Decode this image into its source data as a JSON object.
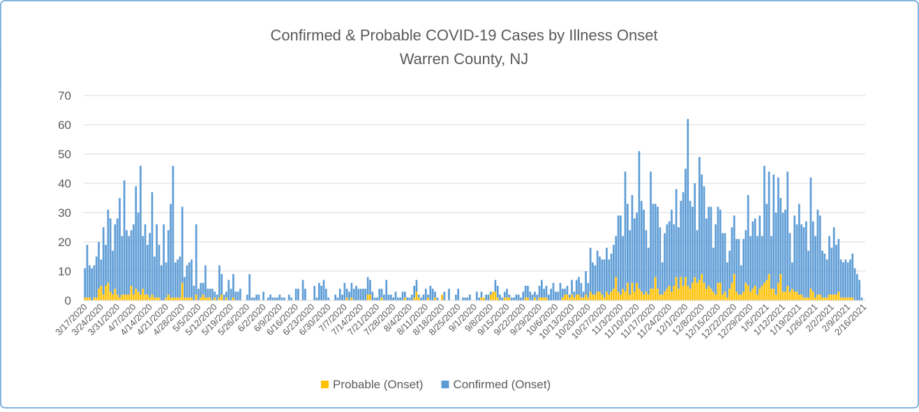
{
  "chart_data": {
    "type": "stacked_bar",
    "title": "Confirmed & Probable COVID-19 Cases by Illness Onset",
    "subtitle": "Warren County, NJ",
    "categories": [
      "3/17/2020",
      null,
      null,
      null,
      null,
      null,
      null,
      "3/24/2020",
      null,
      null,
      null,
      null,
      null,
      null,
      "3/31/2020",
      null,
      null,
      null,
      null,
      null,
      null,
      "4/7/2020",
      null,
      null,
      null,
      null,
      null,
      null,
      "4/14/2020",
      null,
      null,
      null,
      null,
      null,
      null,
      "4/21/2020",
      null,
      null,
      null,
      null,
      null,
      null,
      "4/28/2020",
      null,
      null,
      null,
      null,
      null,
      null,
      "5/5/2020",
      null,
      null,
      null,
      null,
      null,
      null,
      "5/12/2020",
      null,
      null,
      null,
      null,
      null,
      null,
      "5/19/2020",
      null,
      null,
      null,
      null,
      null,
      null,
      "5/26/2020",
      null,
      null,
      null,
      null,
      null,
      null,
      "6/2/2020",
      null,
      null,
      null,
      null,
      null,
      null,
      "6/9/2020",
      null,
      null,
      null,
      null,
      null,
      null,
      "6/16/2020",
      null,
      null,
      null,
      null,
      null,
      null,
      "6/23/2020",
      null,
      null,
      null,
      null,
      null,
      null,
      "6/30/2020",
      null,
      null,
      null,
      null,
      null,
      null,
      "7/7/2020",
      null,
      null,
      null,
      null,
      null,
      null,
      "7/14/2020",
      null,
      null,
      null,
      null,
      null,
      null,
      "7/21/2020",
      null,
      null,
      null,
      null,
      null,
      null,
      "7/28/2020",
      null,
      null,
      null,
      null,
      null,
      null,
      "8/4/2020",
      null,
      null,
      null,
      null,
      null,
      null,
      "8/11/2020",
      null,
      null,
      null,
      null,
      null,
      null,
      "8/18/2020",
      null,
      null,
      null,
      null,
      null,
      null,
      "8/25/2020",
      null,
      null,
      null,
      null,
      null,
      null,
      "9/1/2020",
      null,
      null,
      null,
      null,
      null,
      null,
      "9/8/2020",
      null,
      null,
      null,
      null,
      null,
      null,
      "9/15/2020",
      null,
      null,
      null,
      null,
      null,
      null,
      "9/22/2020",
      null,
      null,
      null,
      null,
      null,
      null,
      "9/29/2020",
      null,
      null,
      null,
      null,
      null,
      null,
      "10/6/2020",
      null,
      null,
      null,
      null,
      null,
      null,
      "10/13/2020",
      null,
      null,
      null,
      null,
      null,
      null,
      "10/20/2020",
      null,
      null,
      null,
      null,
      null,
      null,
      "10/27/2020",
      null,
      null,
      null,
      null,
      null,
      null,
      "11/3/2020",
      null,
      null,
      null,
      null,
      null,
      null,
      "11/10/2020",
      null,
      null,
      null,
      null,
      null,
      null,
      "11/17/2020",
      null,
      null,
      null,
      null,
      null,
      null,
      "11/24/2020",
      null,
      null,
      null,
      null,
      null,
      null,
      "12/1/2020",
      null,
      null,
      null,
      null,
      null,
      null,
      "12/8/2020",
      null,
      null,
      null,
      null,
      null,
      null,
      "12/15/2020",
      null,
      null,
      null,
      null,
      null,
      null,
      "12/22/2020",
      null,
      null,
      null,
      null,
      null,
      null,
      "12/29/2020",
      null,
      null,
      null,
      null,
      null,
      null,
      "1/5/2021",
      null,
      null,
      null,
      null,
      null,
      null,
      "1/12/2021",
      null,
      null,
      null,
      null,
      null,
      null,
      "1/19/2021",
      null,
      null,
      null,
      null,
      null,
      null,
      "1/26/2021",
      null,
      null,
      null,
      null,
      null,
      null,
      "2/2/2021",
      null,
      null,
      null,
      null,
      null,
      null,
      "2/9/2021",
      null,
      null,
      null,
      null,
      null,
      null,
      "2/16/2021"
    ],
    "series": [
      {
        "name": "Probable (Onset)",
        "color": "#ffc000",
        "values": [
          1,
          1,
          1,
          0,
          1,
          1,
          4,
          5,
          2,
          5,
          6,
          3,
          2,
          4,
          2,
          1,
          2,
          2,
          2,
          2,
          5,
          2,
          4,
          3,
          2,
          4,
          2,
          2,
          1,
          2,
          1,
          1,
          1,
          0,
          0,
          1,
          2,
          1,
          1,
          1,
          1,
          1,
          6,
          1,
          1,
          1,
          1,
          0,
          2,
          0,
          1,
          2,
          1,
          1,
          1,
          0,
          1,
          0,
          1,
          2,
          0,
          1,
          0,
          0,
          1,
          0,
          0,
          0,
          0,
          0,
          0,
          0,
          0,
          0,
          0,
          0,
          0,
          0,
          0,
          0,
          0,
          0,
          0,
          0,
          0,
          0,
          0,
          0,
          0,
          0,
          0,
          0,
          0,
          0,
          0,
          0,
          0,
          0,
          0,
          0,
          0,
          0,
          0,
          0,
          0,
          0,
          0,
          0,
          0,
          0,
          0,
          0,
          0,
          1,
          0,
          1,
          0,
          0,
          0,
          0,
          0,
          0,
          2,
          2,
          0,
          0,
          0,
          0,
          1,
          0,
          0,
          0,
          0,
          0,
          0,
          0,
          0,
          0,
          1,
          0,
          0,
          0,
          1,
          3,
          1,
          0,
          0,
          0,
          1,
          0,
          0,
          1,
          0,
          0,
          2,
          0,
          0,
          0,
          0,
          0,
          0,
          0,
          0,
          0,
          0,
          0,
          0,
          0,
          0,
          0,
          0,
          1,
          1,
          0,
          0,
          2,
          3,
          3,
          1,
          0,
          0,
          1,
          1,
          1,
          0,
          0,
          0,
          0,
          0,
          0,
          1,
          1,
          0,
          0,
          1,
          0,
          1,
          1,
          1,
          1,
          0,
          0,
          0,
          0,
          0,
          0,
          1,
          2,
          2,
          1,
          2,
          1,
          2,
          2,
          1,
          1,
          2,
          1,
          3,
          2,
          2,
          3,
          3,
          2,
          1,
          3,
          2,
          3,
          4,
          8,
          3,
          2,
          4,
          3,
          6,
          2,
          6,
          3,
          6,
          4,
          3,
          2,
          3,
          2,
          4,
          4,
          8,
          4,
          2,
          2,
          3,
          4,
          5,
          3,
          5,
          8,
          4,
          8,
          5,
          8,
          5,
          4,
          6,
          8,
          6,
          7,
          9,
          6,
          4,
          5,
          4,
          3,
          2,
          6,
          6,
          2,
          3,
          1,
          4,
          6,
          9,
          3,
          2,
          2,
          3,
          6,
          5,
          3,
          4,
          5,
          2,
          4,
          5,
          6,
          7,
          9,
          4,
          4,
          2,
          6,
          9,
          3,
          3,
          5,
          3,
          4,
          3,
          3,
          2,
          2,
          1,
          1,
          1,
          4,
          3,
          1,
          2,
          2,
          1,
          1,
          1,
          2,
          2,
          2,
          2,
          3,
          1,
          1,
          1,
          1,
          1,
          1,
          0,
          0,
          0,
          0,
          0
        ]
      },
      {
        "name": "Confirmed (Onset)",
        "color": "#5b9bd5",
        "values": [
          10,
          18,
          11,
          11,
          11,
          14,
          16,
          9,
          23,
          14,
          25,
          25,
          15,
          22,
          26,
          34,
          20,
          39,
          22,
          20,
          19,
          24,
          35,
          27,
          44,
          18,
          24,
          17,
          22,
          35,
          14,
          25,
          18,
          12,
          26,
          12,
          22,
          32,
          45,
          12,
          13,
          14,
          26,
          7,
          11,
          12,
          13,
          5,
          24,
          4,
          5,
          4,
          11,
          3,
          3,
          4,
          2,
          2,
          11,
          7,
          2,
          2,
          7,
          4,
          8,
          3,
          3,
          4,
          0,
          0,
          2,
          9,
          1,
          1,
          2,
          2,
          0,
          3,
          0,
          1,
          2,
          1,
          1,
          1,
          2,
          1,
          1,
          0,
          2,
          1,
          0,
          4,
          4,
          0,
          7,
          4,
          0,
          0,
          0,
          5,
          1,
          6,
          5,
          7,
          4,
          1,
          0,
          0,
          2,
          1,
          4,
          2,
          6,
          3,
          3,
          5,
          4,
          5,
          4,
          4,
          4,
          4,
          6,
          5,
          3,
          1,
          1,
          4,
          3,
          2,
          7,
          2,
          2,
          1,
          3,
          1,
          1,
          3,
          2,
          1,
          1,
          2,
          4,
          4,
          1,
          1,
          2,
          4,
          1,
          5,
          4,
          2,
          1,
          0,
          0,
          3,
          0,
          4,
          0,
          0,
          2,
          4,
          0,
          1,
          1,
          1,
          2,
          0,
          0,
          3,
          1,
          2,
          0,
          2,
          2,
          1,
          0,
          4,
          4,
          2,
          1,
          2,
          3,
          1,
          1,
          1,
          2,
          2,
          1,
          3,
          4,
          4,
          3,
          2,
          2,
          2,
          4,
          6,
          3,
          4,
          2,
          4,
          6,
          3,
          3,
          6,
          3,
          2,
          3,
          1,
          5,
          2,
          5,
          6,
          5,
          2,
          8,
          5,
          15,
          11,
          10,
          14,
          12,
          12,
          13,
          15,
          12,
          13,
          15,
          14,
          26,
          27,
          18,
          41,
          27,
          22,
          30,
          25,
          24,
          47,
          31,
          29,
          21,
          16,
          40,
          29,
          25,
          28,
          23,
          11,
          20,
          22,
          22,
          28,
          21,
          30,
          21,
          26,
          32,
          37,
          57,
          30,
          26,
          32,
          18,
          42,
          34,
          33,
          24,
          27,
          28,
          15,
          24,
          26,
          25,
          21,
          20,
          12,
          13,
          19,
          20,
          18,
          19,
          10,
          18,
          18,
          31,
          19,
          23,
          23,
          20,
          25,
          17,
          40,
          26,
          35,
          18,
          39,
          28,
          36,
          26,
          27,
          28,
          39,
          20,
          9,
          26,
          23,
          31,
          24,
          24,
          26,
          16,
          38,
          24,
          21,
          29,
          27,
          16,
          15,
          13,
          20,
          16,
          23,
          17,
          18,
          13,
          12,
          13,
          12,
          13,
          15,
          11,
          9,
          7,
          1,
          0
        ]
      }
    ],
    "ylim": [
      0,
      70
    ],
    "yticks": [
      0,
      10,
      20,
      30,
      40,
      50,
      60,
      70
    ],
    "grid": true,
    "legend": "bottom"
  }
}
